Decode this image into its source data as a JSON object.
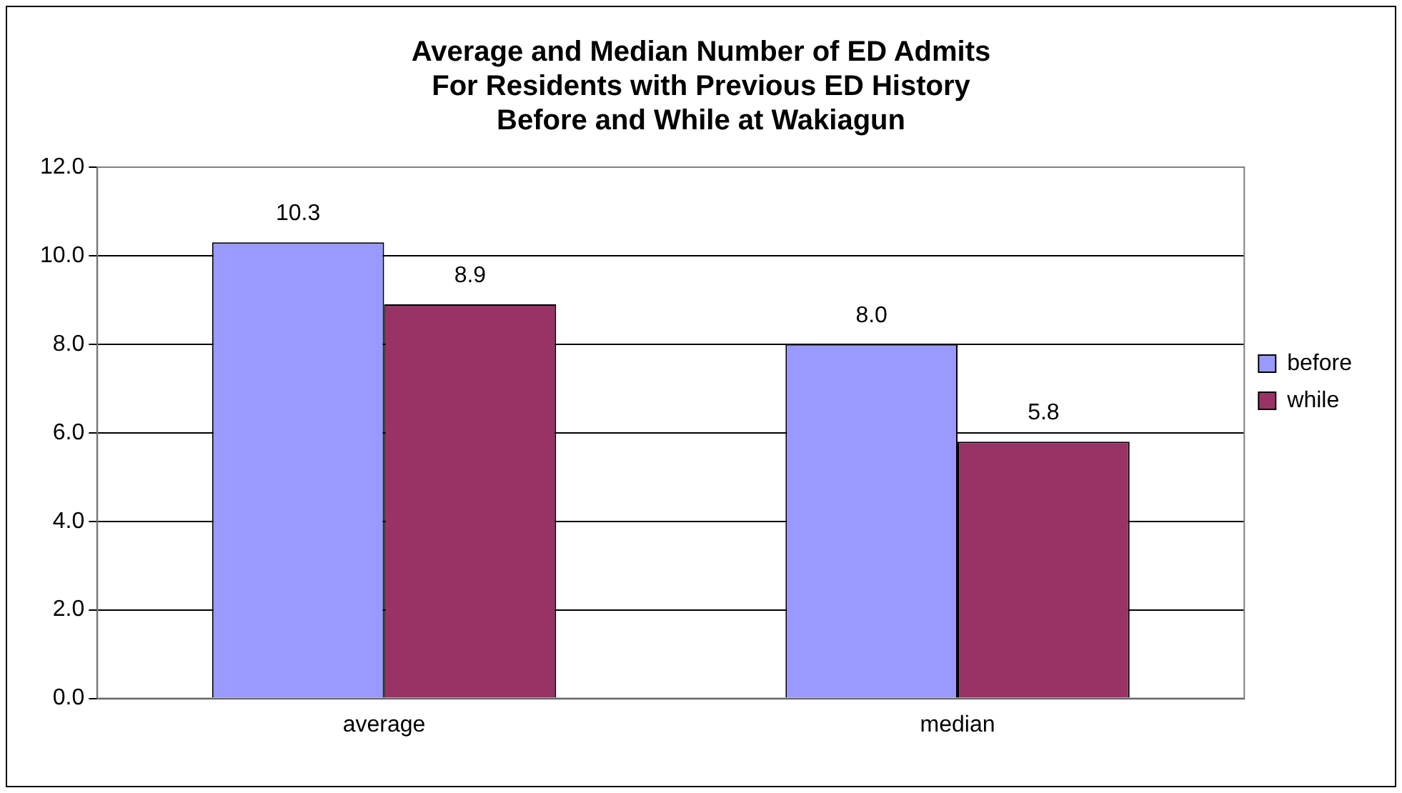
{
  "chart_data": {
    "type": "bar",
    "title": "Average and Median Number of ED Admits\nFor Residents with Previous ED History\nBefore and While at Wakiagun",
    "categories": [
      "average",
      "median"
    ],
    "series": [
      {
        "name": "before",
        "color": "#9999ff",
        "values": [
          10.3,
          8.0
        ],
        "value_labels": [
          "10.3",
          "8.0"
        ]
      },
      {
        "name": "while",
        "color": "#993366",
        "values": [
          8.9,
          5.8
        ],
        "value_labels": [
          "8.9",
          "5.8"
        ]
      }
    ],
    "ylim": [
      0,
      12
    ],
    "yticks": [
      {
        "value": 0,
        "label": "0.0"
      },
      {
        "value": 2,
        "label": "2.0"
      },
      {
        "value": 4,
        "label": "4.0"
      },
      {
        "value": 6,
        "label": "6.0"
      },
      {
        "value": 8,
        "label": "8.0"
      },
      {
        "value": 10,
        "label": "10.0"
      },
      {
        "value": 12,
        "label": "12.0"
      }
    ],
    "grid": "y",
    "legend": "right"
  }
}
